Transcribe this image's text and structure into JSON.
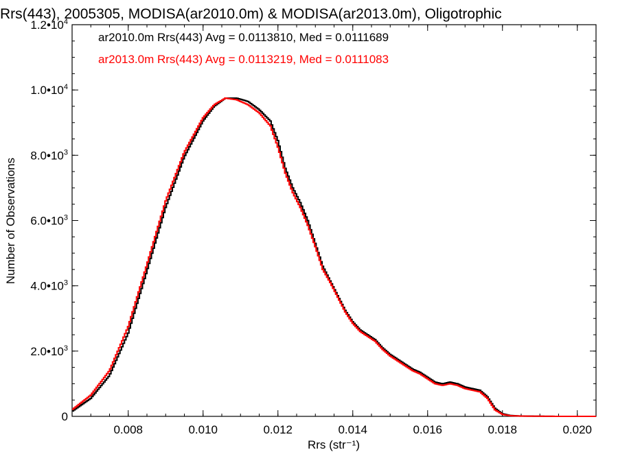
{
  "chart_data": {
    "type": "line",
    "title": "Rrs(443), 2005305, MODISA(ar2010.0m) & MODISA(ar2013.0m), Oligotrophic",
    "xlabel": "Rrs (str⁻¹)",
    "ylabel": "Number of Observations",
    "xlim": [
      0.0065,
      0.0205
    ],
    "ylim": [
      0,
      12000
    ],
    "x_ticks": [
      0.008,
      0.01,
      0.012,
      0.014,
      0.016,
      0.018,
      0.02
    ],
    "x_tick_labels": [
      "0.008",
      "0.010",
      "0.012",
      "0.014",
      "0.016",
      "0.018",
      "0.020"
    ],
    "y_ticks": [
      {
        "value": 0,
        "mantissa": "0",
        "exp": ""
      },
      {
        "value": 2000,
        "mantissa": "2.0•10",
        "exp": "3"
      },
      {
        "value": 4000,
        "mantissa": "4.0•10",
        "exp": "3"
      },
      {
        "value": 6000,
        "mantissa": "6.0•10",
        "exp": "3"
      },
      {
        "value": 8000,
        "mantissa": "8.0•10",
        "exp": "3"
      },
      {
        "value": 10000,
        "mantissa": "1.0•10",
        "exp": "4"
      },
      {
        "value": 12000,
        "mantissa": "1.2•10",
        "exp": "4"
      }
    ],
    "grid": false,
    "step": true,
    "annotations": [
      {
        "text": "ar2010.0m Rrs(443) Avg = 0.0113810, Med = 0.0111689",
        "color": "#000000"
      },
      {
        "text": "ar2013.0m Rrs(443) Avg = 0.0113219, Med = 0.0111083",
        "color": "#ff0000"
      }
    ],
    "series": [
      {
        "color": "#000000",
        "x": [
          0.0065,
          0.007,
          0.0075,
          0.008,
          0.0085,
          0.009,
          0.0095,
          0.01,
          0.0103,
          0.0106,
          0.0109,
          0.0112,
          0.0115,
          0.0118,
          0.012,
          0.0122,
          0.0124,
          0.0126,
          0.0128,
          0.013,
          0.0132,
          0.0134,
          0.0136,
          0.0138,
          0.014,
          0.0142,
          0.0144,
          0.0146,
          0.0148,
          0.015,
          0.0152,
          0.0154,
          0.0156,
          0.0158,
          0.016,
          0.0162,
          0.0164,
          0.0166,
          0.0168,
          0.017,
          0.0172,
          0.0174,
          0.0176,
          0.0178,
          0.018,
          0.0182,
          0.0185,
          0.019,
          0.0195,
          0.02,
          0.0205
        ],
        "y": [
          150,
          550,
          1250,
          2550,
          4450,
          6400,
          7950,
          9050,
          9500,
          9750,
          9750,
          9650,
          9400,
          9050,
          8450,
          7600,
          7000,
          6550,
          6000,
          5300,
          4600,
          4150,
          3700,
          3250,
          2900,
          2650,
          2500,
          2350,
          2100,
          1900,
          1750,
          1600,
          1450,
          1350,
          1200,
          1050,
          1000,
          1050,
          1000,
          900,
          850,
          800,
          600,
          250,
          80,
          30,
          10,
          5,
          0,
          0,
          0
        ]
      },
      {
        "color": "#ff0000",
        "x": [
          0.0065,
          0.007,
          0.0075,
          0.008,
          0.0085,
          0.009,
          0.0095,
          0.01,
          0.0103,
          0.0106,
          0.0109,
          0.0112,
          0.0115,
          0.0118,
          0.012,
          0.0122,
          0.0124,
          0.0126,
          0.0128,
          0.013,
          0.0132,
          0.0134,
          0.0136,
          0.0138,
          0.014,
          0.0142,
          0.0144,
          0.0146,
          0.0148,
          0.015,
          0.0152,
          0.0154,
          0.0156,
          0.0158,
          0.016,
          0.0162,
          0.0164,
          0.0166,
          0.0168,
          0.017,
          0.0172,
          0.0174,
          0.0176,
          0.0178,
          0.018,
          0.0182,
          0.0185,
          0.019,
          0.0195,
          0.02,
          0.0205
        ],
        "y": [
          200,
          650,
          1400,
          2750,
          4650,
          6600,
          8100,
          9150,
          9550,
          9750,
          9700,
          9550,
          9300,
          8900,
          8250,
          7450,
          6850,
          6400,
          5850,
          5200,
          4500,
          4100,
          3650,
          3200,
          2850,
          2600,
          2450,
          2300,
          2050,
          1850,
          1700,
          1550,
          1400,
          1300,
          1150,
          1000,
          950,
          1000,
          950,
          850,
          800,
          750,
          550,
          200,
          60,
          20,
          8,
          4,
          0,
          0,
          0
        ]
      }
    ]
  }
}
